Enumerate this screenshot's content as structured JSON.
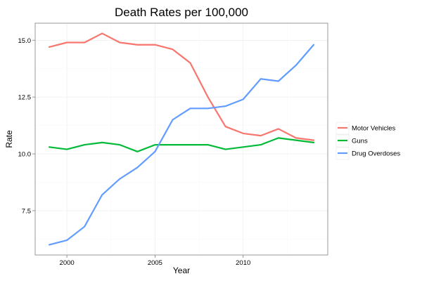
{
  "chart_data": {
    "type": "line",
    "title": "Death Rates per 100,000",
    "xlabel": "Year",
    "ylabel": "Rate",
    "x": [
      1999,
      2000,
      2001,
      2002,
      2003,
      2004,
      2005,
      2006,
      2007,
      2008,
      2009,
      2010,
      2011,
      2012,
      2013,
      2014
    ],
    "xlim": [
      1998.2,
      2014.8
    ],
    "ylim": [
      5.55,
      15.75
    ],
    "x_ticks": [
      2000,
      2005,
      2010
    ],
    "x_tick_labels": [
      "2000",
      "2005",
      "2010"
    ],
    "y_ticks": [
      7.5,
      10.0,
      12.5,
      15.0
    ],
    "y_tick_labels": [
      "7.5",
      "10.0",
      "12.5",
      "15.0"
    ],
    "grid": true,
    "legend_position": "right",
    "series": [
      {
        "name": "Motor Vehicles",
        "color": "#F8766D",
        "values": [
          14.7,
          14.9,
          14.9,
          15.3,
          14.9,
          14.8,
          14.8,
          14.6,
          14.0,
          12.5,
          11.2,
          10.9,
          10.8,
          11.1,
          10.7,
          10.6
        ]
      },
      {
        "name": "Guns",
        "color": "#00BA38",
        "values": [
          10.3,
          10.2,
          10.4,
          10.5,
          10.4,
          10.1,
          10.4,
          10.4,
          10.4,
          10.4,
          10.2,
          10.3,
          10.4,
          10.7,
          10.6,
          10.5
        ]
      },
      {
        "name": "Drug Overdoses",
        "color": "#619CFF",
        "values": [
          6.0,
          6.2,
          6.8,
          8.2,
          8.9,
          9.4,
          10.1,
          11.5,
          12.0,
          12.0,
          12.1,
          12.4,
          13.3,
          13.2,
          13.9,
          14.8
        ]
      }
    ]
  }
}
